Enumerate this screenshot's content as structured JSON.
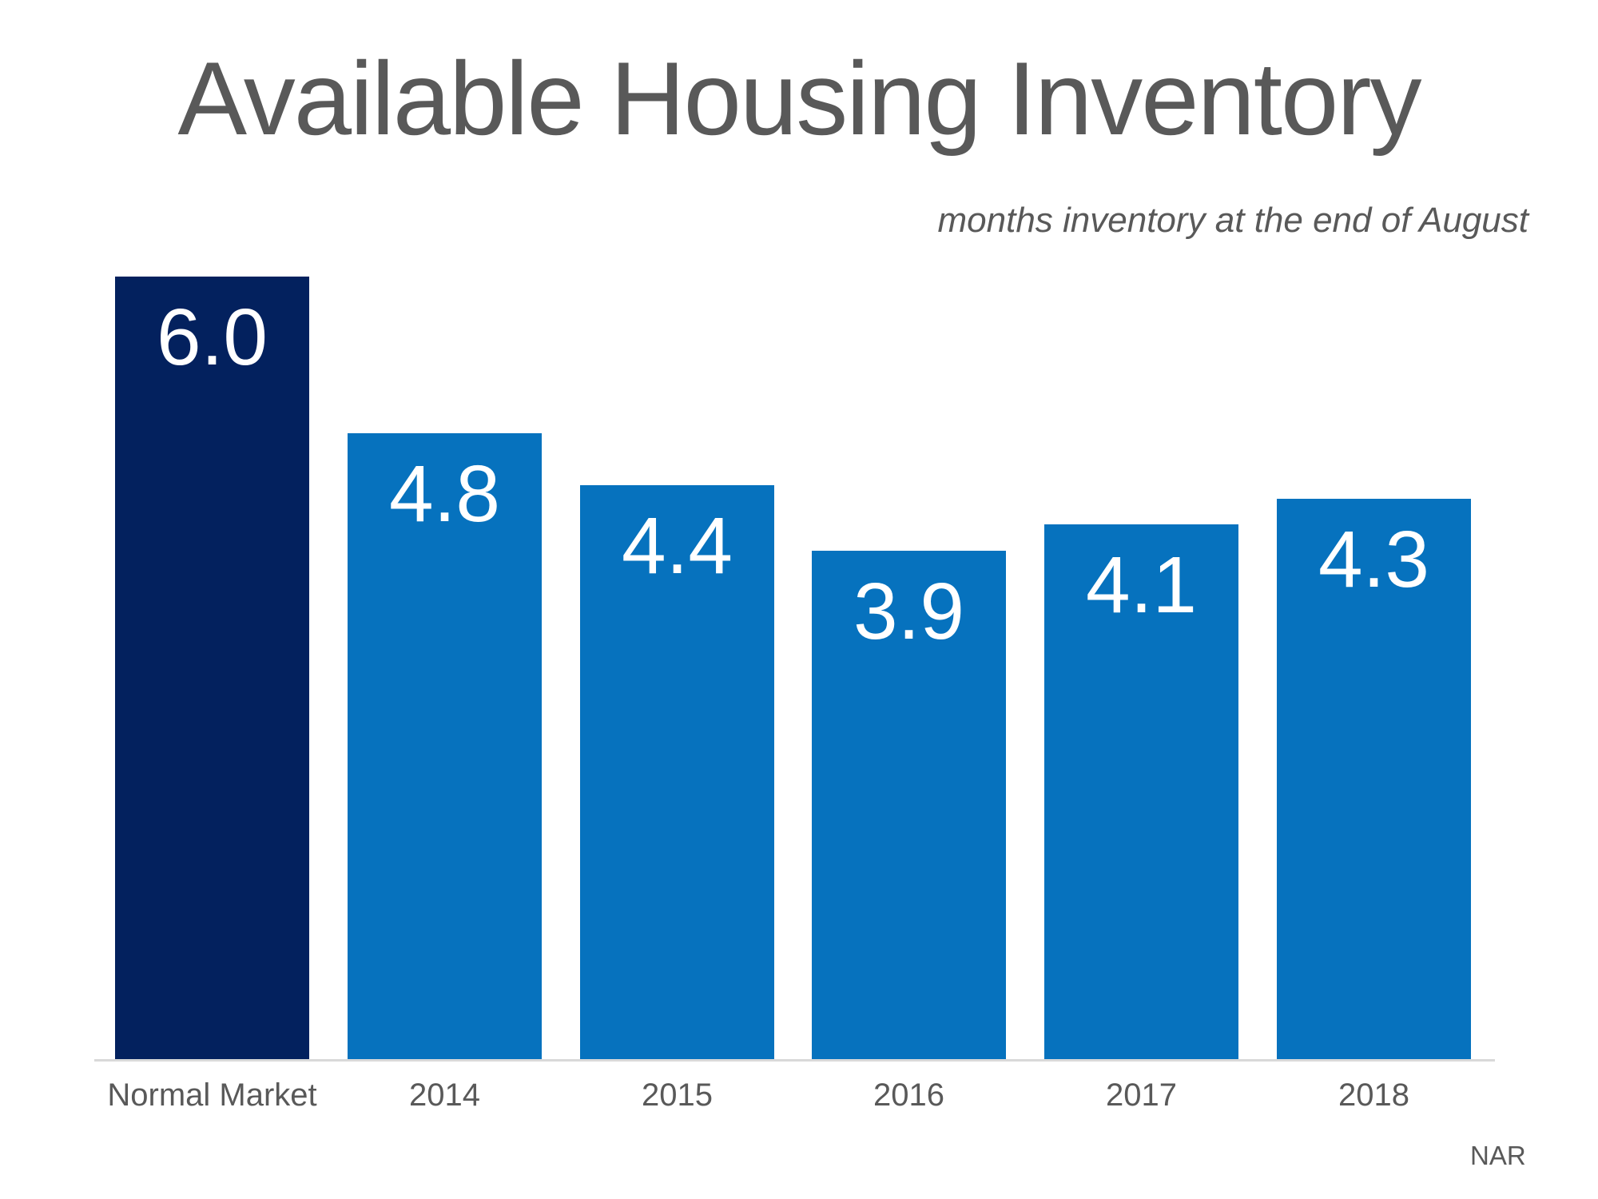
{
  "chart_data": {
    "type": "bar",
    "title": "Available Housing Inventory",
    "subtitle": "months inventory at the end of August",
    "source": "NAR",
    "categories": [
      "Normal Market",
      "2014",
      "2015",
      "2016",
      "2017",
      "2018"
    ],
    "values": [
      6.0,
      4.8,
      4.4,
      3.9,
      4.1,
      4.3
    ],
    "value_labels": [
      "6.0",
      "4.8",
      "4.4",
      "3.9",
      "4.1",
      "4.3"
    ],
    "ylim": [
      0,
      6.0
    ],
    "grid": false,
    "legend": false,
    "highlight_index": 0,
    "colors": {
      "highlight_bar": "#03215E",
      "default_bar": "#0672BE",
      "title_text": "#595959",
      "subtitle_text": "#595959",
      "axis_label_text": "#595959",
      "source_text": "#595959",
      "data_label_text": "#FFFFFF",
      "baseline": "#D9D9D9",
      "background": "#FFFFFF"
    }
  }
}
